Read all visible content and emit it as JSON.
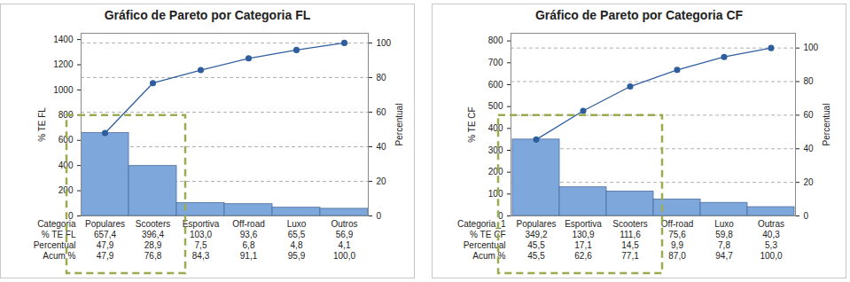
{
  "chart_data": [
    {
      "type": "bar",
      "title": "Gráfico de Pareto por Categoria FL",
      "xlabel": "Categoria",
      "ylabel": "% TE FL",
      "y2label": "Percentual",
      "categories": [
        "Populares",
        "Scooters",
        "Esportiva",
        "Off-road",
        "Luxo",
        "Outros"
      ],
      "values": [
        657.4,
        396.4,
        103.0,
        93.6,
        65.5,
        56.9
      ],
      "value_labels": [
        "657,4",
        "396,4",
        "103,0",
        "93,6",
        "65,5",
        "56,9"
      ],
      "color": "#7ea8dc",
      "percent": {
        "name": "Percentual",
        "values": [
          47.9,
          28.9,
          7.5,
          6.8,
          4.8,
          4.1
        ],
        "value_labels": [
          "47,9",
          "28,9",
          "7,5",
          "6,8",
          "4,8",
          "4,1"
        ]
      },
      "series": [
        {
          "name": "Acum %",
          "type": "line",
          "axis": "y2",
          "color": "#2f5e9e",
          "marker": "circle",
          "values": [
            47.9,
            76.8,
            84.3,
            91.1,
            95.9,
            100.0
          ],
          "value_labels": [
            "47,9",
            "76,8",
            "84,3",
            "91,1",
            "95,9",
            "100,0"
          ]
        }
      ],
      "ylim": [
        0,
        1450
      ],
      "yticks": [
        0,
        200,
        400,
        600,
        800,
        1000,
        1200,
        1400
      ],
      "y2lim": [
        0,
        105.6
      ],
      "y2ticks": [
        0,
        20,
        40,
        60,
        80,
        100
      ],
      "grid": true
    },
    {
      "type": "bar",
      "title": "Gráfico de Pareto por Categoria CF",
      "xlabel": "Categoria_1",
      "ylabel": "% TE CF",
      "y2label": "Percentual",
      "categories": [
        "Populares",
        "Esportiva",
        "Scooters",
        "Off-road",
        "Luxo",
        "Outras"
      ],
      "values": [
        349.2,
        130.9,
        111.6,
        75.6,
        59.8,
        40.3
      ],
      "value_labels": [
        "349,2",
        "130,9",
        "111,6",
        "75,6",
        "59,8",
        "40,3"
      ],
      "color": "#7ea8dc",
      "percent": {
        "name": "Percentual",
        "values": [
          45.5,
          17.1,
          14.5,
          9.9,
          7.8,
          5.3
        ],
        "value_labels": [
          "45,5",
          "17,1",
          "14,5",
          "9,9",
          "7,8",
          "5,3"
        ]
      },
      "series": [
        {
          "name": "Acum %",
          "type": "line",
          "axis": "y2",
          "color": "#2f5e9e",
          "marker": "circle",
          "values": [
            45.5,
            62.6,
            77.1,
            87.0,
            94.7,
            100.0
          ],
          "value_labels": [
            "45,5",
            "62,6",
            "77,1",
            "87,0",
            "94,7",
            "100,0"
          ]
        }
      ],
      "ylim": [
        0,
        835
      ],
      "yticks": [
        0,
        100,
        200,
        300,
        400,
        500,
        600,
        700,
        800
      ],
      "y2lim": [
        0,
        108.8
      ],
      "y2ticks": [
        0,
        20,
        40,
        60,
        80,
        100
      ],
      "grid": true
    }
  ]
}
